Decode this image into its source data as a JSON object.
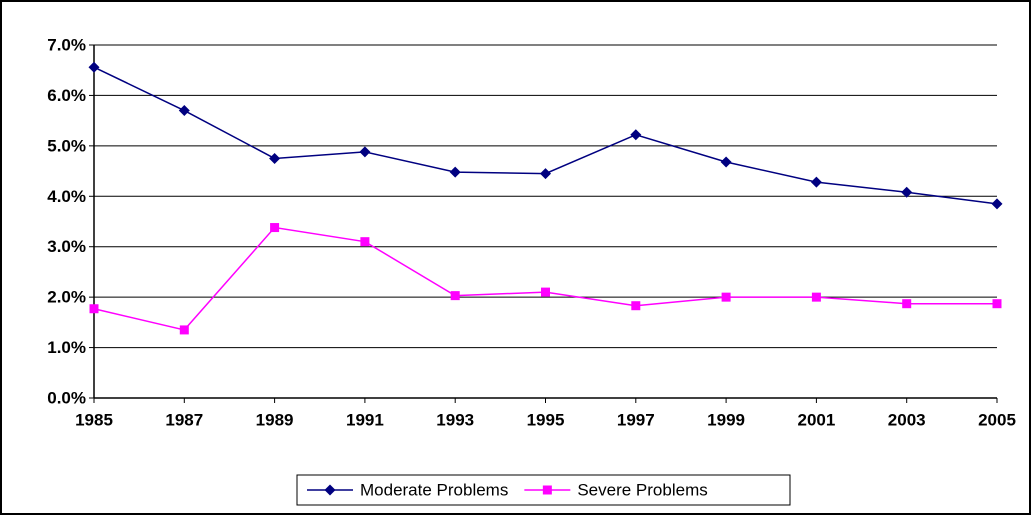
{
  "chart_data": {
    "type": "line",
    "categories": [
      "1985",
      "1987",
      "1989",
      "1991",
      "1993",
      "1995",
      "1997",
      "1999",
      "2001",
      "2003",
      "2005"
    ],
    "series": [
      {
        "name": "Moderate Problems",
        "color": "#000080",
        "marker": "diamond",
        "values": [
          6.56,
          5.7,
          4.75,
          4.88,
          4.48,
          4.45,
          5.22,
          4.68,
          4.28,
          4.08,
          3.85
        ]
      },
      {
        "name": "Severe Problems",
        "color": "#ff00ff",
        "marker": "square",
        "values": [
          1.77,
          1.35,
          3.38,
          3.1,
          2.03,
          2.1,
          1.83,
          2.0,
          2.0,
          1.87,
          1.87
        ]
      }
    ],
    "ylim": [
      0,
      7
    ],
    "yticks": [
      {
        "value": 0,
        "label": "0.0%"
      },
      {
        "value": 1,
        "label": "1.0%"
      },
      {
        "value": 2,
        "label": "2.0%"
      },
      {
        "value": 3,
        "label": "3.0%"
      },
      {
        "value": 4,
        "label": "4.0%"
      },
      {
        "value": 5,
        "label": "5.0%"
      },
      {
        "value": 6,
        "label": "6.0%"
      },
      {
        "value": 7,
        "label": "7.0%"
      }
    ],
    "grid": true,
    "legend": "bottom"
  }
}
